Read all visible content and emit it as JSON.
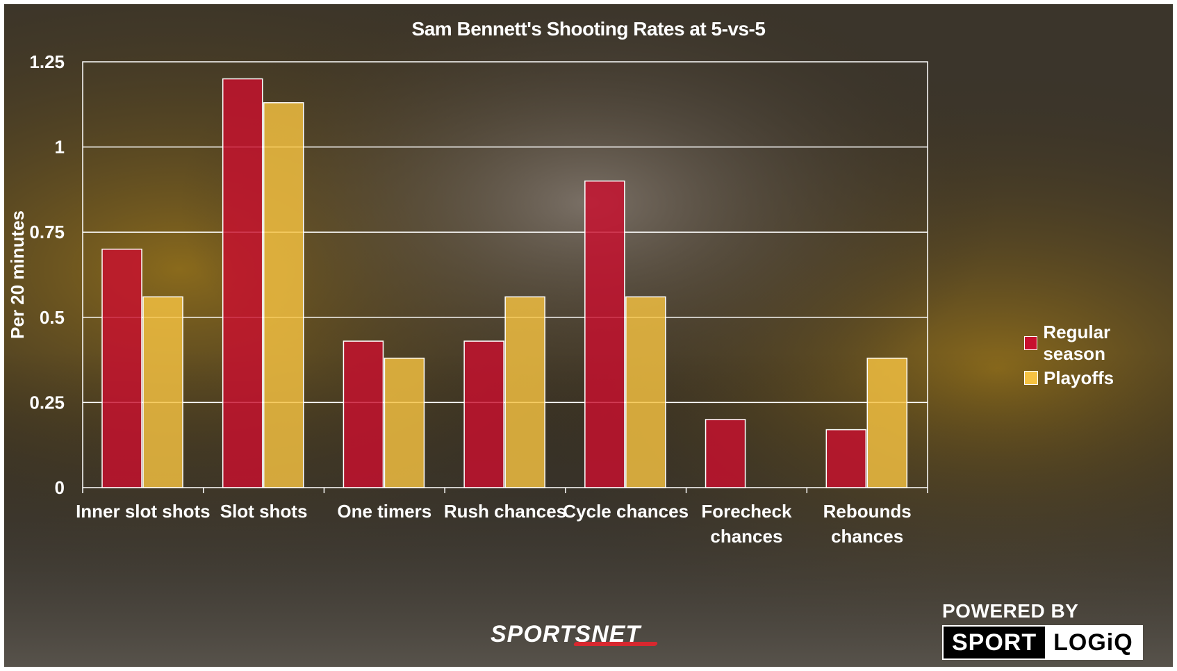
{
  "chart_data": {
    "type": "bar",
    "title": "Sam Bennett's Shooting Rates at 5-vs-5",
    "xlabel": "",
    "ylabel": "Per 20 minutes",
    "ylim": [
      0,
      1.25
    ],
    "yticks": [
      "0",
      "0.25",
      "0.5",
      "0.75",
      "1",
      "1.25"
    ],
    "ytick_values": [
      0,
      0.25,
      0.5,
      0.75,
      1,
      1.25
    ],
    "categories": [
      [
        "Inner slot shots"
      ],
      [
        "Slot shots"
      ],
      [
        "One timers"
      ],
      [
        "Rush chances"
      ],
      [
        "Cycle chances"
      ],
      [
        "Forecheck",
        "chances"
      ],
      [
        "Rebounds",
        "chances"
      ]
    ],
    "series": [
      {
        "name": "Regular season",
        "color": "#c8102e",
        "values": [
          0.7,
          1.2,
          0.43,
          0.43,
          0.9,
          0.2,
          0.17
        ]
      },
      {
        "name": "Playoffs",
        "color": "#f5c242",
        "values": [
          0.56,
          1.13,
          0.38,
          0.56,
          0.56,
          0.0,
          0.38
        ]
      }
    ],
    "grid": true,
    "legend_position": "right"
  },
  "branding": {
    "powered_by": "POWERED BY",
    "sport": "SPORT",
    "logiq": "LOGiQ",
    "sportsnet": "SPORTSNET"
  }
}
